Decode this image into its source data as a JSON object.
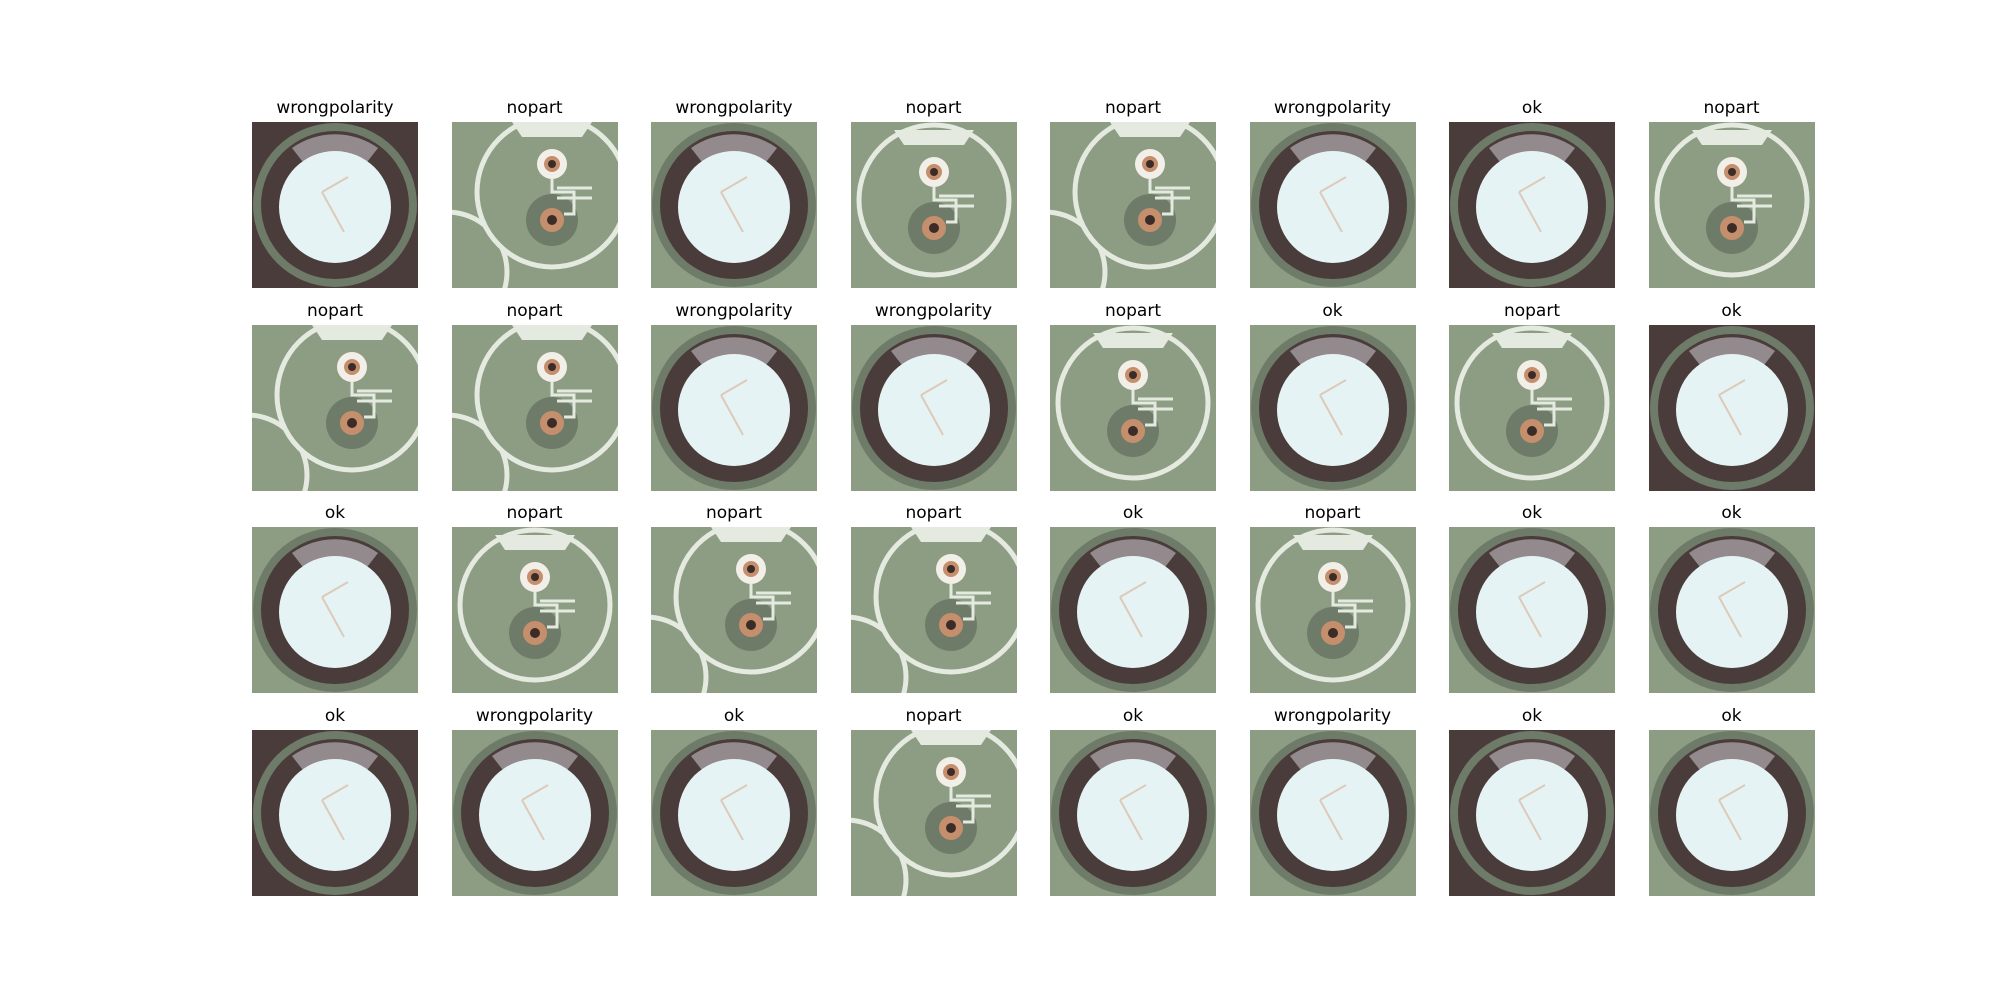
{
  "figure": {
    "rows": 4,
    "cols": 8,
    "colors": {
      "board": "#8d9d84",
      "board_dark": "#6f7b69",
      "silkscreen": "#e4eadf",
      "cap_body": "#4a3c3a",
      "cap_top": "#e6f3f4",
      "cap_stripe": "#a59ea3",
      "pad_ring": "#f2efe8",
      "hole": "#3b2c28",
      "copper": "#c58f6d"
    },
    "panels": [
      {
        "label": "wrongpolarity",
        "kind": "cap"
      },
      {
        "label": "nopart",
        "kind": "empty-partial"
      },
      {
        "label": "wrongpolarity",
        "kind": "cap"
      },
      {
        "label": "nopart",
        "kind": "empty"
      },
      {
        "label": "nopart",
        "kind": "empty-partial"
      },
      {
        "label": "wrongpolarity",
        "kind": "cap"
      },
      {
        "label": "ok",
        "kind": "cap"
      },
      {
        "label": "nopart",
        "kind": "empty"
      },
      {
        "label": "nopart",
        "kind": "empty-partial"
      },
      {
        "label": "nopart",
        "kind": "empty-partial"
      },
      {
        "label": "wrongpolarity",
        "kind": "cap"
      },
      {
        "label": "wrongpolarity",
        "kind": "cap"
      },
      {
        "label": "nopart",
        "kind": "empty"
      },
      {
        "label": "ok",
        "kind": "cap"
      },
      {
        "label": "nopart",
        "kind": "empty"
      },
      {
        "label": "ok",
        "kind": "cap"
      },
      {
        "label": "ok",
        "kind": "cap"
      },
      {
        "label": "nopart",
        "kind": "empty"
      },
      {
        "label": "nopart",
        "kind": "empty-partial"
      },
      {
        "label": "nopart",
        "kind": "empty-partial"
      },
      {
        "label": "ok",
        "kind": "cap"
      },
      {
        "label": "nopart",
        "kind": "empty"
      },
      {
        "label": "ok",
        "kind": "cap"
      },
      {
        "label": "ok",
        "kind": "cap"
      },
      {
        "label": "ok",
        "kind": "cap"
      },
      {
        "label": "wrongpolarity",
        "kind": "cap"
      },
      {
        "label": "ok",
        "kind": "cap"
      },
      {
        "label": "nopart",
        "kind": "empty-partial"
      },
      {
        "label": "ok",
        "kind": "cap"
      },
      {
        "label": "wrongpolarity",
        "kind": "cap"
      },
      {
        "label": "ok",
        "kind": "cap"
      },
      {
        "label": "ok",
        "kind": "cap"
      }
    ]
  }
}
